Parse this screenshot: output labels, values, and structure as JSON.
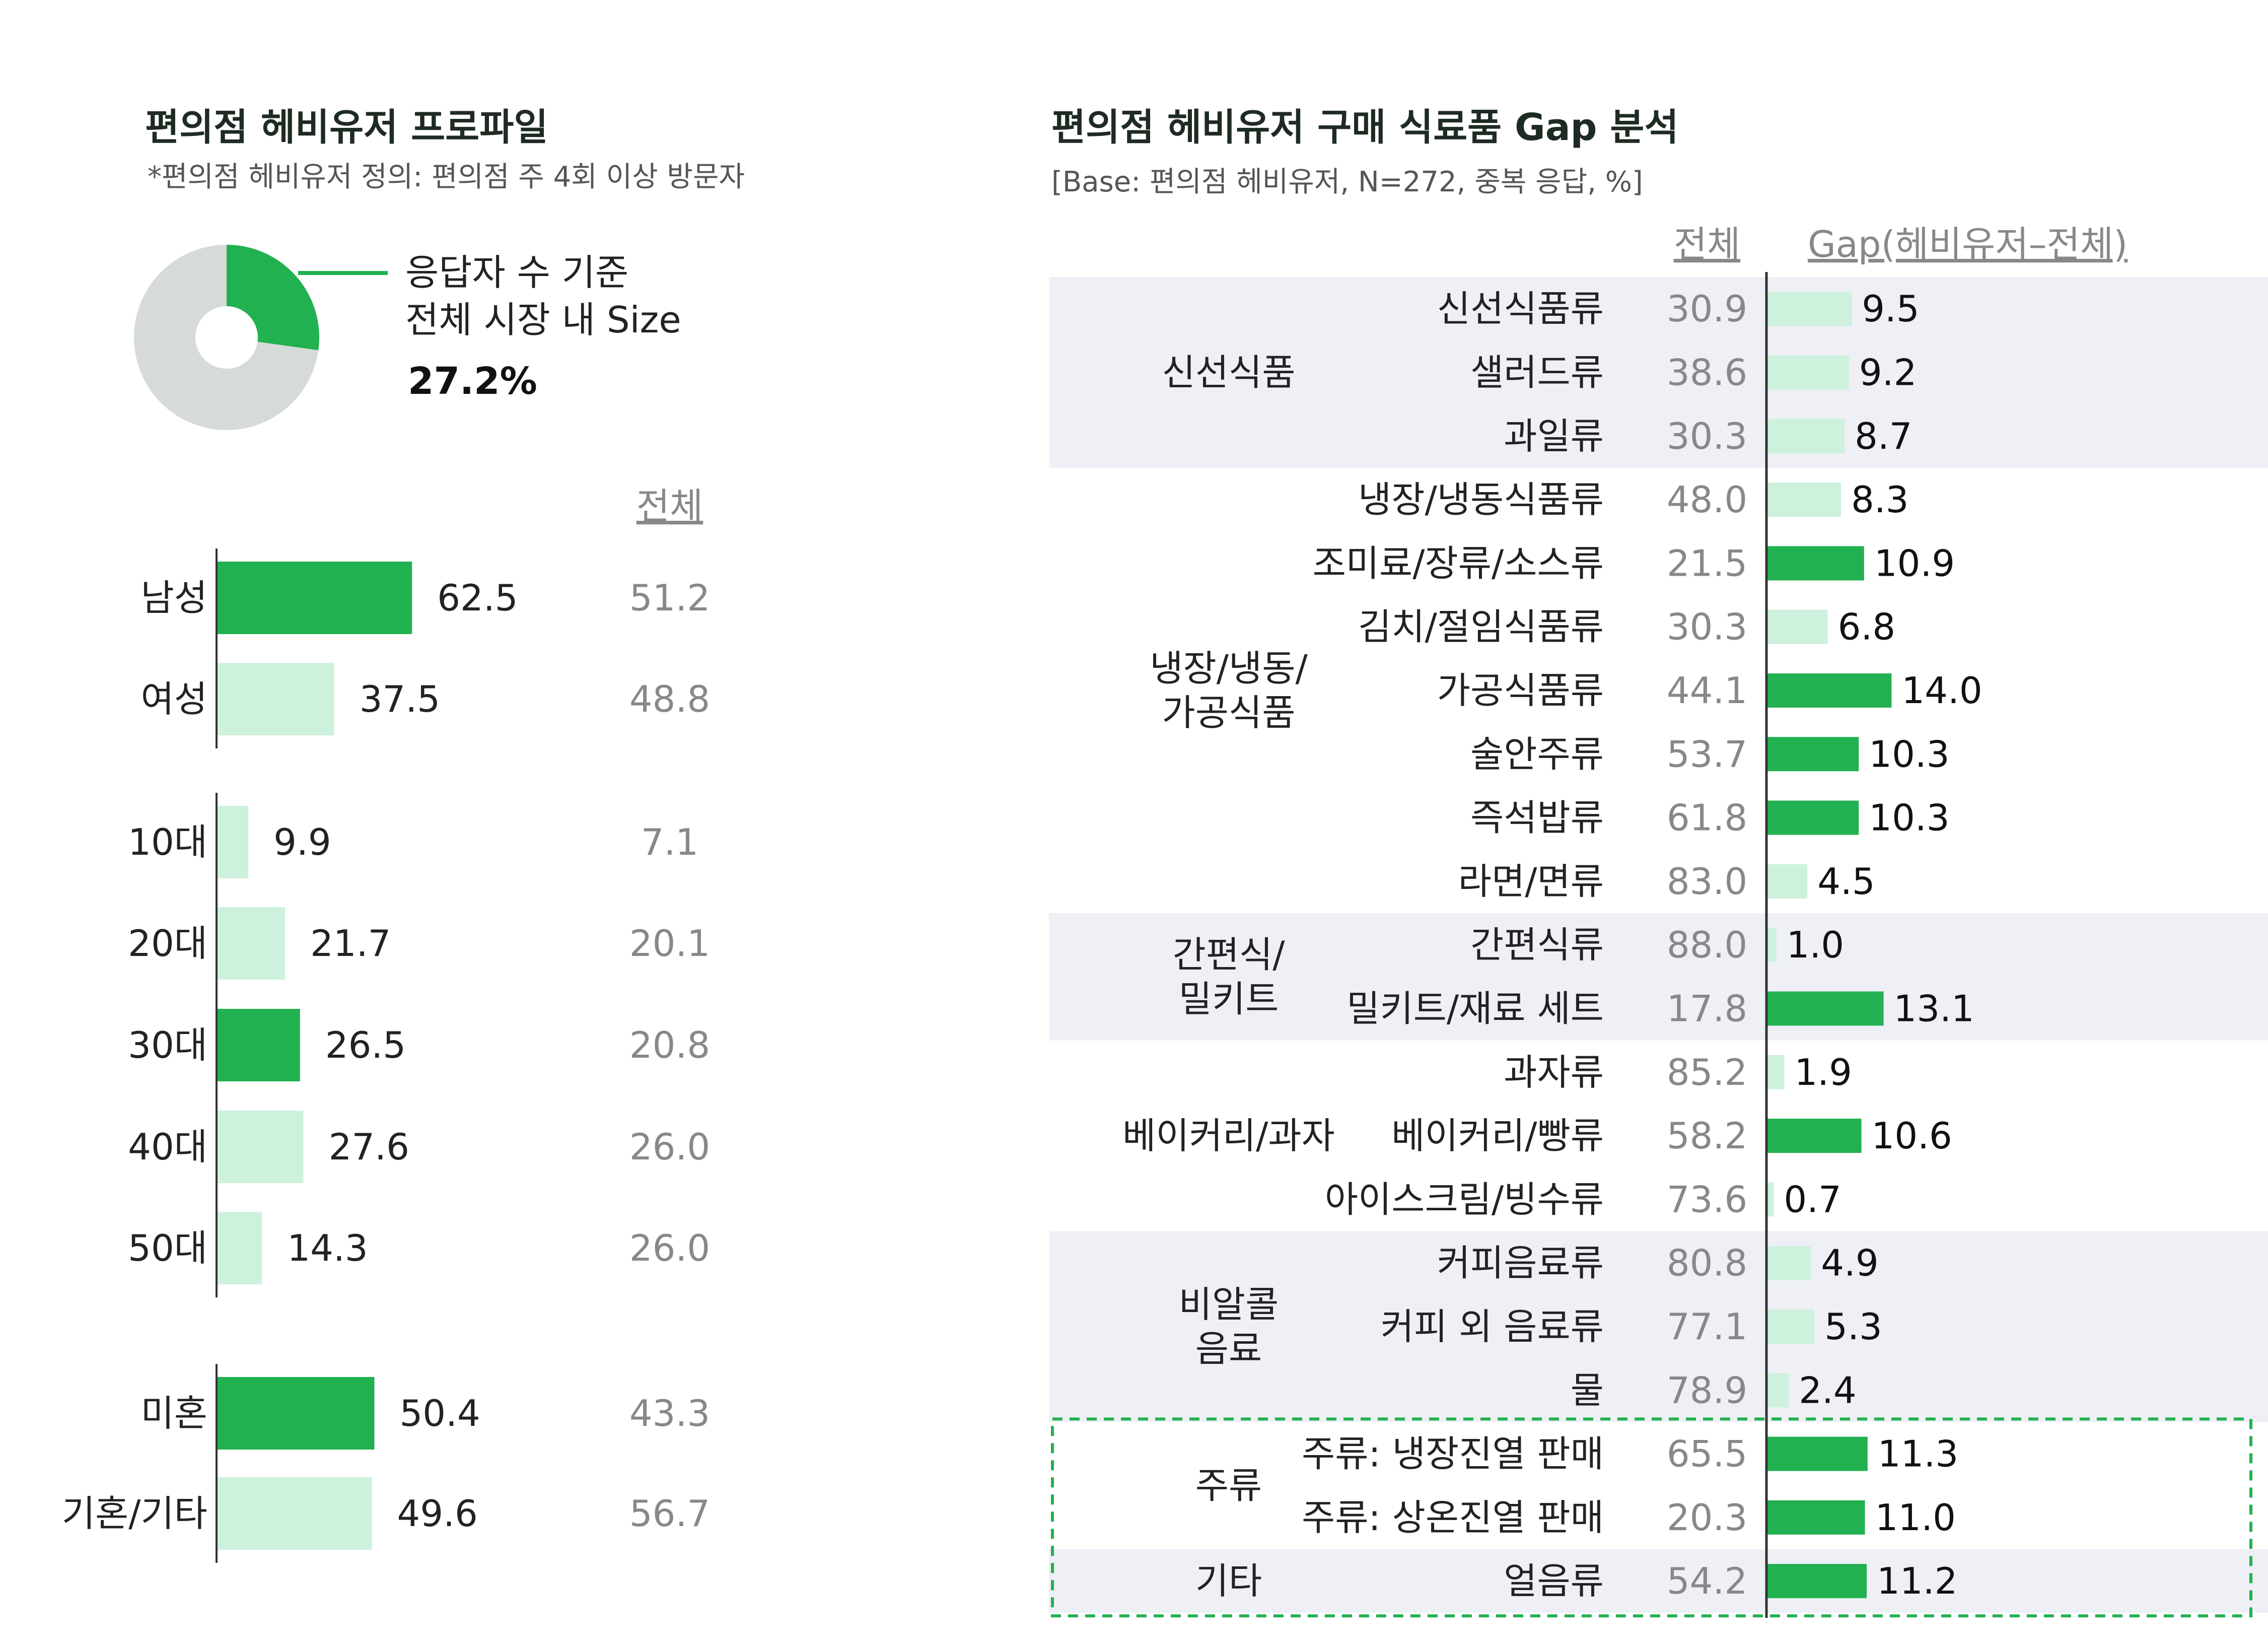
{
  "left_panel": {
    "title": "편의점 헤비유저 프로파일",
    "subtitle": "*편의점 헤비유저 정의: 편의점 주 4회 이상 방문자",
    "donut": {
      "label_line1": "응답자 수 기준",
      "label_line2": "전체 시장 내 Size",
      "value_text": "27.2%",
      "value": 27.2
    },
    "total_header": "전체"
  },
  "right_panel": {
    "title": "편의점 헤비유저 구매 식료품 Gap 분석",
    "subtitle": "[Base: 편의점 헤비유저, N=272, 중복 응답, %]",
    "total_header": "전체",
    "gap_header": "Gap(헤비유저–전체)"
  },
  "colors": {
    "dark_green": "#22b150",
    "light_green": "#cdf1dd",
    "donut_grey": "#d6dbd8",
    "band_grey": "#eef0f6",
    "axis": "#333333"
  },
  "chart_data": [
    {
      "type": "bar",
      "orientation": "horizontal",
      "name": "profile",
      "groups": [
        {
          "rows": [
            {
              "label": "남성",
              "value": 62.5,
              "value_text": "62.5",
              "total": "51.2",
              "highlight": true
            },
            {
              "label": "여성",
              "value": 37.5,
              "value_text": "37.5",
              "total": "48.8",
              "highlight": false
            }
          ]
        },
        {
          "rows": [
            {
              "label": "10대",
              "value": 9.9,
              "value_text": "9.9",
              "total": "7.1",
              "highlight": false
            },
            {
              "label": "20대",
              "value": 21.7,
              "value_text": "21.7",
              "total": "20.1",
              "highlight": false
            },
            {
              "label": "30대",
              "value": 26.5,
              "value_text": "26.5",
              "total": "20.8",
              "highlight": true
            },
            {
              "label": "40대",
              "value": 27.6,
              "value_text": "27.6",
              "total": "26.0",
              "highlight": false
            },
            {
              "label": "50대",
              "value": 14.3,
              "value_text": "14.3",
              "total": "26.0",
              "highlight": false
            }
          ]
        },
        {
          "rows": [
            {
              "label": "미혼",
              "value": 50.4,
              "value_text": "50.4",
              "total": "43.3",
              "highlight": true
            },
            {
              "label": "기혼/기타",
              "value": 49.6,
              "value_text": "49.6",
              "total": "56.7",
              "highlight": false
            }
          ]
        }
      ]
    },
    {
      "type": "bar",
      "orientation": "horizontal",
      "name": "gap",
      "categories": [
        {
          "name": [
            "신선식품"
          ],
          "shaded": true,
          "items": [
            {
              "label": "신선식품류",
              "total": "30.9",
              "gap": 9.5,
              "gap_text": "9.5",
              "highlight": false
            },
            {
              "label": "샐러드류",
              "total": "38.6",
              "gap": 9.2,
              "gap_text": "9.2",
              "highlight": false
            },
            {
              "label": "과일류",
              "total": "30.3",
              "gap": 8.7,
              "gap_text": "8.7",
              "highlight": false
            }
          ]
        },
        {
          "name": [
            "냉장/냉동/",
            "가공식품"
          ],
          "shaded": false,
          "items": [
            {
              "label": "냉장/냉동식품류",
              "total": "48.0",
              "gap": 8.3,
              "gap_text": "8.3",
              "highlight": false
            },
            {
              "label": "조미료/장류/소스류",
              "total": "21.5",
              "gap": 10.9,
              "gap_text": "10.9",
              "highlight": true
            },
            {
              "label": "김치/절임식품류",
              "total": "30.3",
              "gap": 6.8,
              "gap_text": "6.8",
              "highlight": false
            },
            {
              "label": "가공식품류",
              "total": "44.1",
              "gap": 14.0,
              "gap_text": "14.0",
              "highlight": true
            },
            {
              "label": "술안주류",
              "total": "53.7",
              "gap": 10.3,
              "gap_text": "10.3",
              "highlight": true
            },
            {
              "label": "즉석밥류",
              "total": "61.8",
              "gap": 10.3,
              "gap_text": "10.3",
              "highlight": true
            },
            {
              "label": "라면/면류",
              "total": "83.0",
              "gap": 4.5,
              "gap_text": "4.5",
              "highlight": false
            }
          ]
        },
        {
          "name": [
            "간편식/",
            "밀키트"
          ],
          "shaded": true,
          "items": [
            {
              "label": "간편식류",
              "total": "88.0",
              "gap": 1.0,
              "gap_text": "1.0",
              "highlight": false
            },
            {
              "label": "밀키트/재료 세트",
              "total": "17.8",
              "gap": 13.1,
              "gap_text": "13.1",
              "highlight": true
            }
          ]
        },
        {
          "name": [
            "베이커리/과자"
          ],
          "shaded": false,
          "items": [
            {
              "label": "과자류",
              "total": "85.2",
              "gap": 1.9,
              "gap_text": "1.9",
              "highlight": false
            },
            {
              "label": "베이커리/빵류",
              "total": "58.2",
              "gap": 10.6,
              "gap_text": "10.6",
              "highlight": true
            },
            {
              "label": "아이스크림/빙수류",
              "total": "73.6",
              "gap": 0.7,
              "gap_text": "0.7",
              "highlight": false
            }
          ]
        },
        {
          "name": [
            "비알콜",
            "음료"
          ],
          "shaded": true,
          "items": [
            {
              "label": "커피음료류",
              "total": "80.8",
              "gap": 4.9,
              "gap_text": "4.9",
              "highlight": false
            },
            {
              "label": "커피 외 음료류",
              "total": "77.1",
              "gap": 5.3,
              "gap_text": "5.3",
              "highlight": false
            },
            {
              "label": "물",
              "total": "78.9",
              "gap": 2.4,
              "gap_text": "2.4",
              "highlight": false
            }
          ]
        },
        {
          "name": [
            "주류"
          ],
          "shaded": false,
          "boxed": true,
          "items": [
            {
              "label": "주류: 냉장진열 판매",
              "total": "65.5",
              "gap": 11.3,
              "gap_text": "11.3",
              "highlight": true
            },
            {
              "label": "주류: 상온진열 판매",
              "total": "20.3",
              "gap": 11.0,
              "gap_text": "11.0",
              "highlight": true
            }
          ]
        },
        {
          "name": [
            "기타"
          ],
          "shaded": true,
          "boxed": true,
          "items": [
            {
              "label": "얼음류",
              "total": "54.2",
              "gap": 11.2,
              "gap_text": "11.2",
              "highlight": true
            }
          ]
        }
      ]
    }
  ]
}
